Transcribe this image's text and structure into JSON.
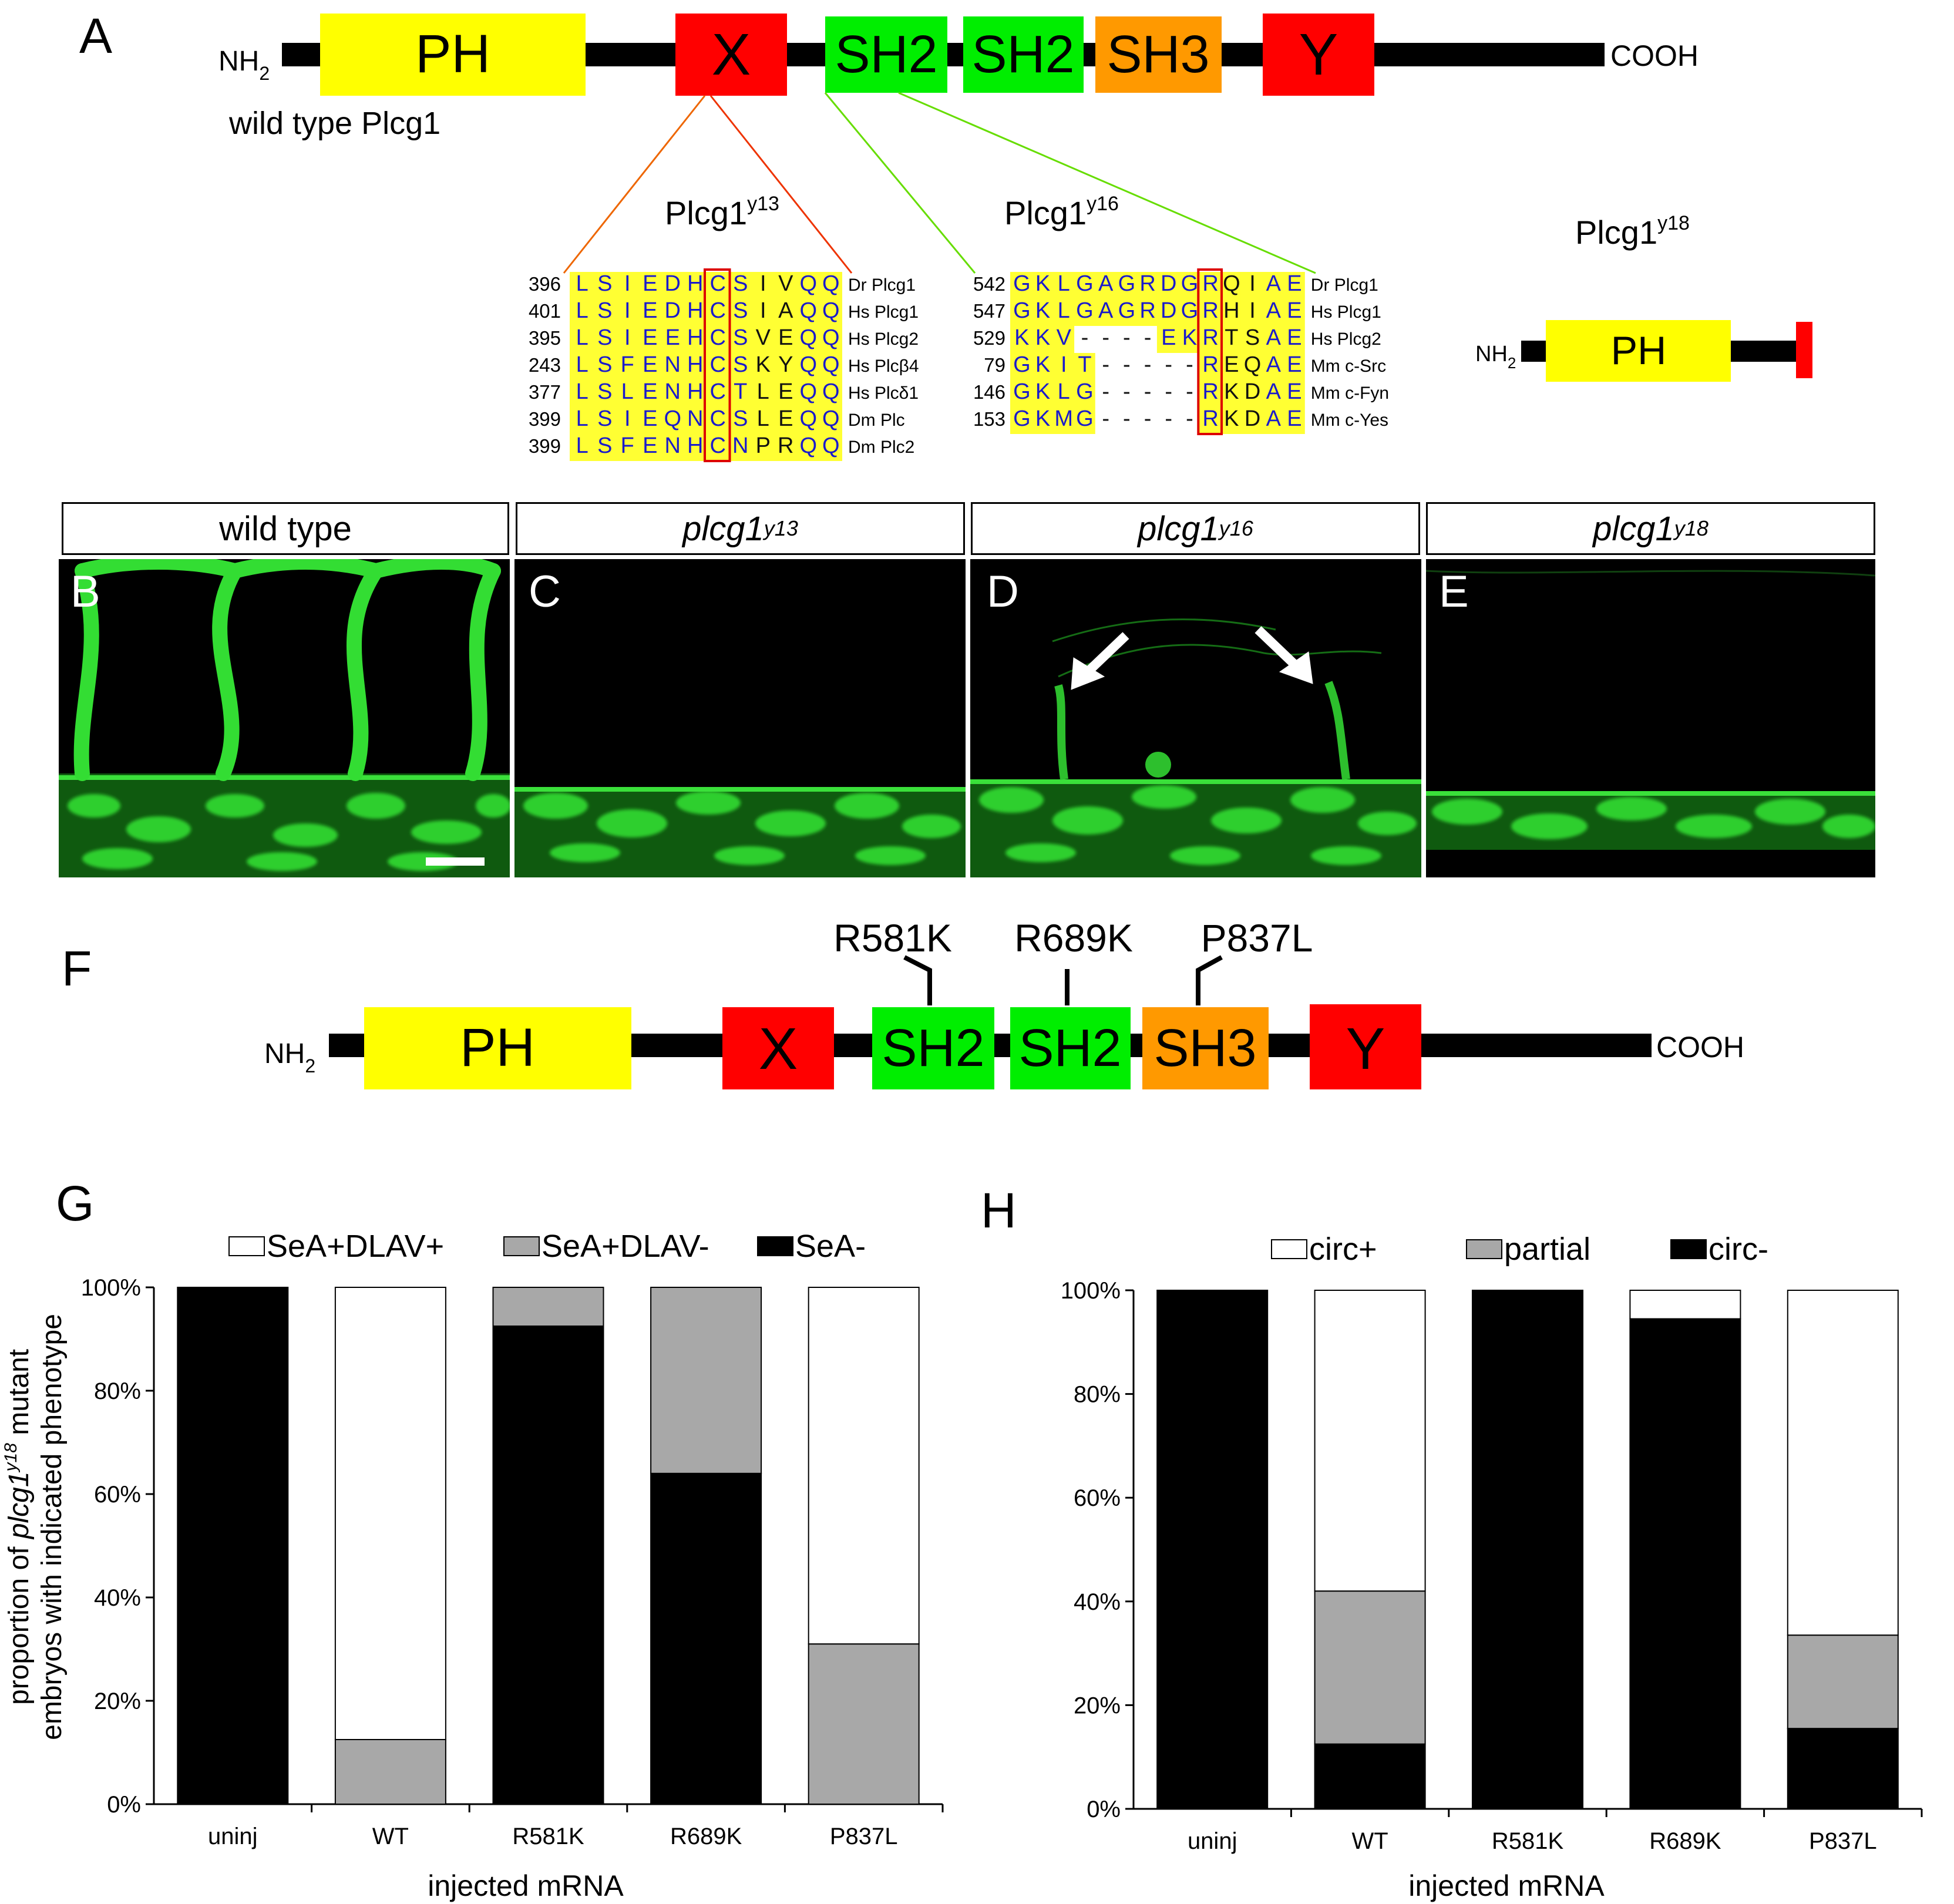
{
  "panelA": {
    "letter": "A",
    "nterm": "NH",
    "nterm_sub": "2",
    "cterm": "COOH",
    "caption": "wild type Plcg1",
    "domains": [
      {
        "label": "PH",
        "color": "#ffff00"
      },
      {
        "label": "X",
        "color": "#ff0000"
      },
      {
        "label": "SH2",
        "color": "#00ee00"
      },
      {
        "label": "SH2",
        "color": "#00ee00"
      },
      {
        "label": "SH3",
        "color": "#ff9900"
      },
      {
        "label": "Y",
        "color": "#ff0000"
      }
    ],
    "allele13": {
      "base": "Plcg1",
      "sup": "y13"
    },
    "allele16": {
      "base": "Plcg1",
      "sup": "y16"
    },
    "allele18": {
      "base": "Plcg1",
      "sup": "y18"
    },
    "truncated": {
      "nterm": "NH",
      "nterm_sub": "2",
      "domain": "PH"
    }
  },
  "alignment_y13": {
    "rows": [
      {
        "num": "396",
        "seq": "LSIEDHCSIVQQ",
        "species": "Dr Plcg1"
      },
      {
        "num": "401",
        "seq": "LSIEDHCSIAQQ",
        "species": "Hs Plcg1"
      },
      {
        "num": "395",
        "seq": "LSIEEHCSVEQQ",
        "species": "Hs Plcg2"
      },
      {
        "num": "243",
        "seq": "LSFENHCSKYQQ",
        "species": "Hs Plcβ4"
      },
      {
        "num": "377",
        "seq": "LSLENHCTLEQQ",
        "species": "Hs Plcδ1"
      },
      {
        "num": "399",
        "seq": "LSIEQNCSLEQQ",
        "species": "Dm Plc"
      },
      {
        "num": "399",
        "seq": "LSFENHCNPRQQ",
        "species": "Dm Plc2"
      }
    ]
  },
  "alignment_y16": {
    "rows": [
      {
        "num": "542",
        "seq": "GKLGAGRDGRQIAE",
        "species": "Dr Plcg1"
      },
      {
        "num": "547",
        "seq": "GKLGAGRDGRHIAE",
        "species": "Hs Plcg1"
      },
      {
        "num": "529",
        "seq": "KKV----EKRTSAE",
        "species": "Hs Plcg2"
      },
      {
        "num": "79",
        "seq": "GKIT-----REQAE",
        "species": "Mm c-Src"
      },
      {
        "num": "146",
        "seq": "GKLG-----RKDAE",
        "species": "Mm c-Fyn"
      },
      {
        "num": "153",
        "seq": "GKMG-----RKDAE",
        "species": "Mm c-Yes"
      }
    ]
  },
  "micrographs": {
    "headers": [
      {
        "text": "wild type",
        "italic": false,
        "sup": ""
      },
      {
        "text": "plcg1",
        "italic": true,
        "sup": "y13"
      },
      {
        "text": "plcg1",
        "italic": true,
        "sup": "y16"
      },
      {
        "text": "plcg1",
        "italic": true,
        "sup": "y18"
      }
    ],
    "letters": [
      "B",
      "C",
      "D",
      "E"
    ]
  },
  "panelF": {
    "letter": "F",
    "nterm": "NH",
    "nterm_sub": "2",
    "cterm": "COOH",
    "domains": [
      "PH",
      "X",
      "SH2",
      "SH2",
      "SH3",
      "Y"
    ],
    "mutations": [
      "R581K",
      "R689K",
      "P837L"
    ]
  },
  "chartG": {
    "letter": "G",
    "ylabel_line1_pre": "proportion of ",
    "ylabel_italic": "plcg1",
    "ylabel_sup": "y18",
    "ylabel_line1_post": " mutant",
    "ylabel_line2": "embryos with indicated phenotype",
    "xlabel": "injected mRNA",
    "legend": [
      "SeA+DLAV+",
      "SeA+DLAV-",
      "SeA-"
    ],
    "yticks": [
      "0%",
      "20%",
      "40%",
      "60%",
      "80%",
      "100%"
    ]
  },
  "chartH": {
    "letter": "H",
    "xlabel": "injected mRNA",
    "legend": [
      "circ+",
      "partial",
      "circ-"
    ],
    "yticks": [
      "0%",
      "20%",
      "40%",
      "60%",
      "80%",
      "100%"
    ]
  },
  "chart_data": [
    {
      "type": "bar",
      "stacked": true,
      "categories": [
        "uninj",
        "WT",
        "R581K",
        "R689K",
        "P837L"
      ],
      "series": [
        {
          "name": "SeA-",
          "color": "#000000",
          "values": [
            100,
            0,
            92.5,
            64,
            0
          ]
        },
        {
          "name": "SeA+DLAV-",
          "color": "#a8a8a8",
          "values": [
            0,
            12.5,
            7.5,
            36,
            31
          ]
        },
        {
          "name": "SeA+DLAV+",
          "color": "#ffffff",
          "values": [
            0,
            87.5,
            0,
            0,
            69
          ]
        }
      ],
      "ylim": [
        0,
        100
      ],
      "legend_position": "top"
    },
    {
      "type": "bar",
      "stacked": true,
      "categories": [
        "uninj",
        "WT",
        "R581K",
        "R689K",
        "P837L"
      ],
      "series": [
        {
          "name": "circ-",
          "color": "#000000",
          "values": [
            100,
            12.5,
            100,
            94.5,
            15.5
          ]
        },
        {
          "name": "partial",
          "color": "#a8a8a8",
          "values": [
            0,
            29.5,
            0,
            0,
            18
          ]
        },
        {
          "name": "circ+",
          "color": "#ffffff",
          "values": [
            0,
            58,
            0,
            5.5,
            66.5
          ]
        }
      ],
      "ylim": [
        0,
        100
      ],
      "legend_position": "top"
    }
  ]
}
